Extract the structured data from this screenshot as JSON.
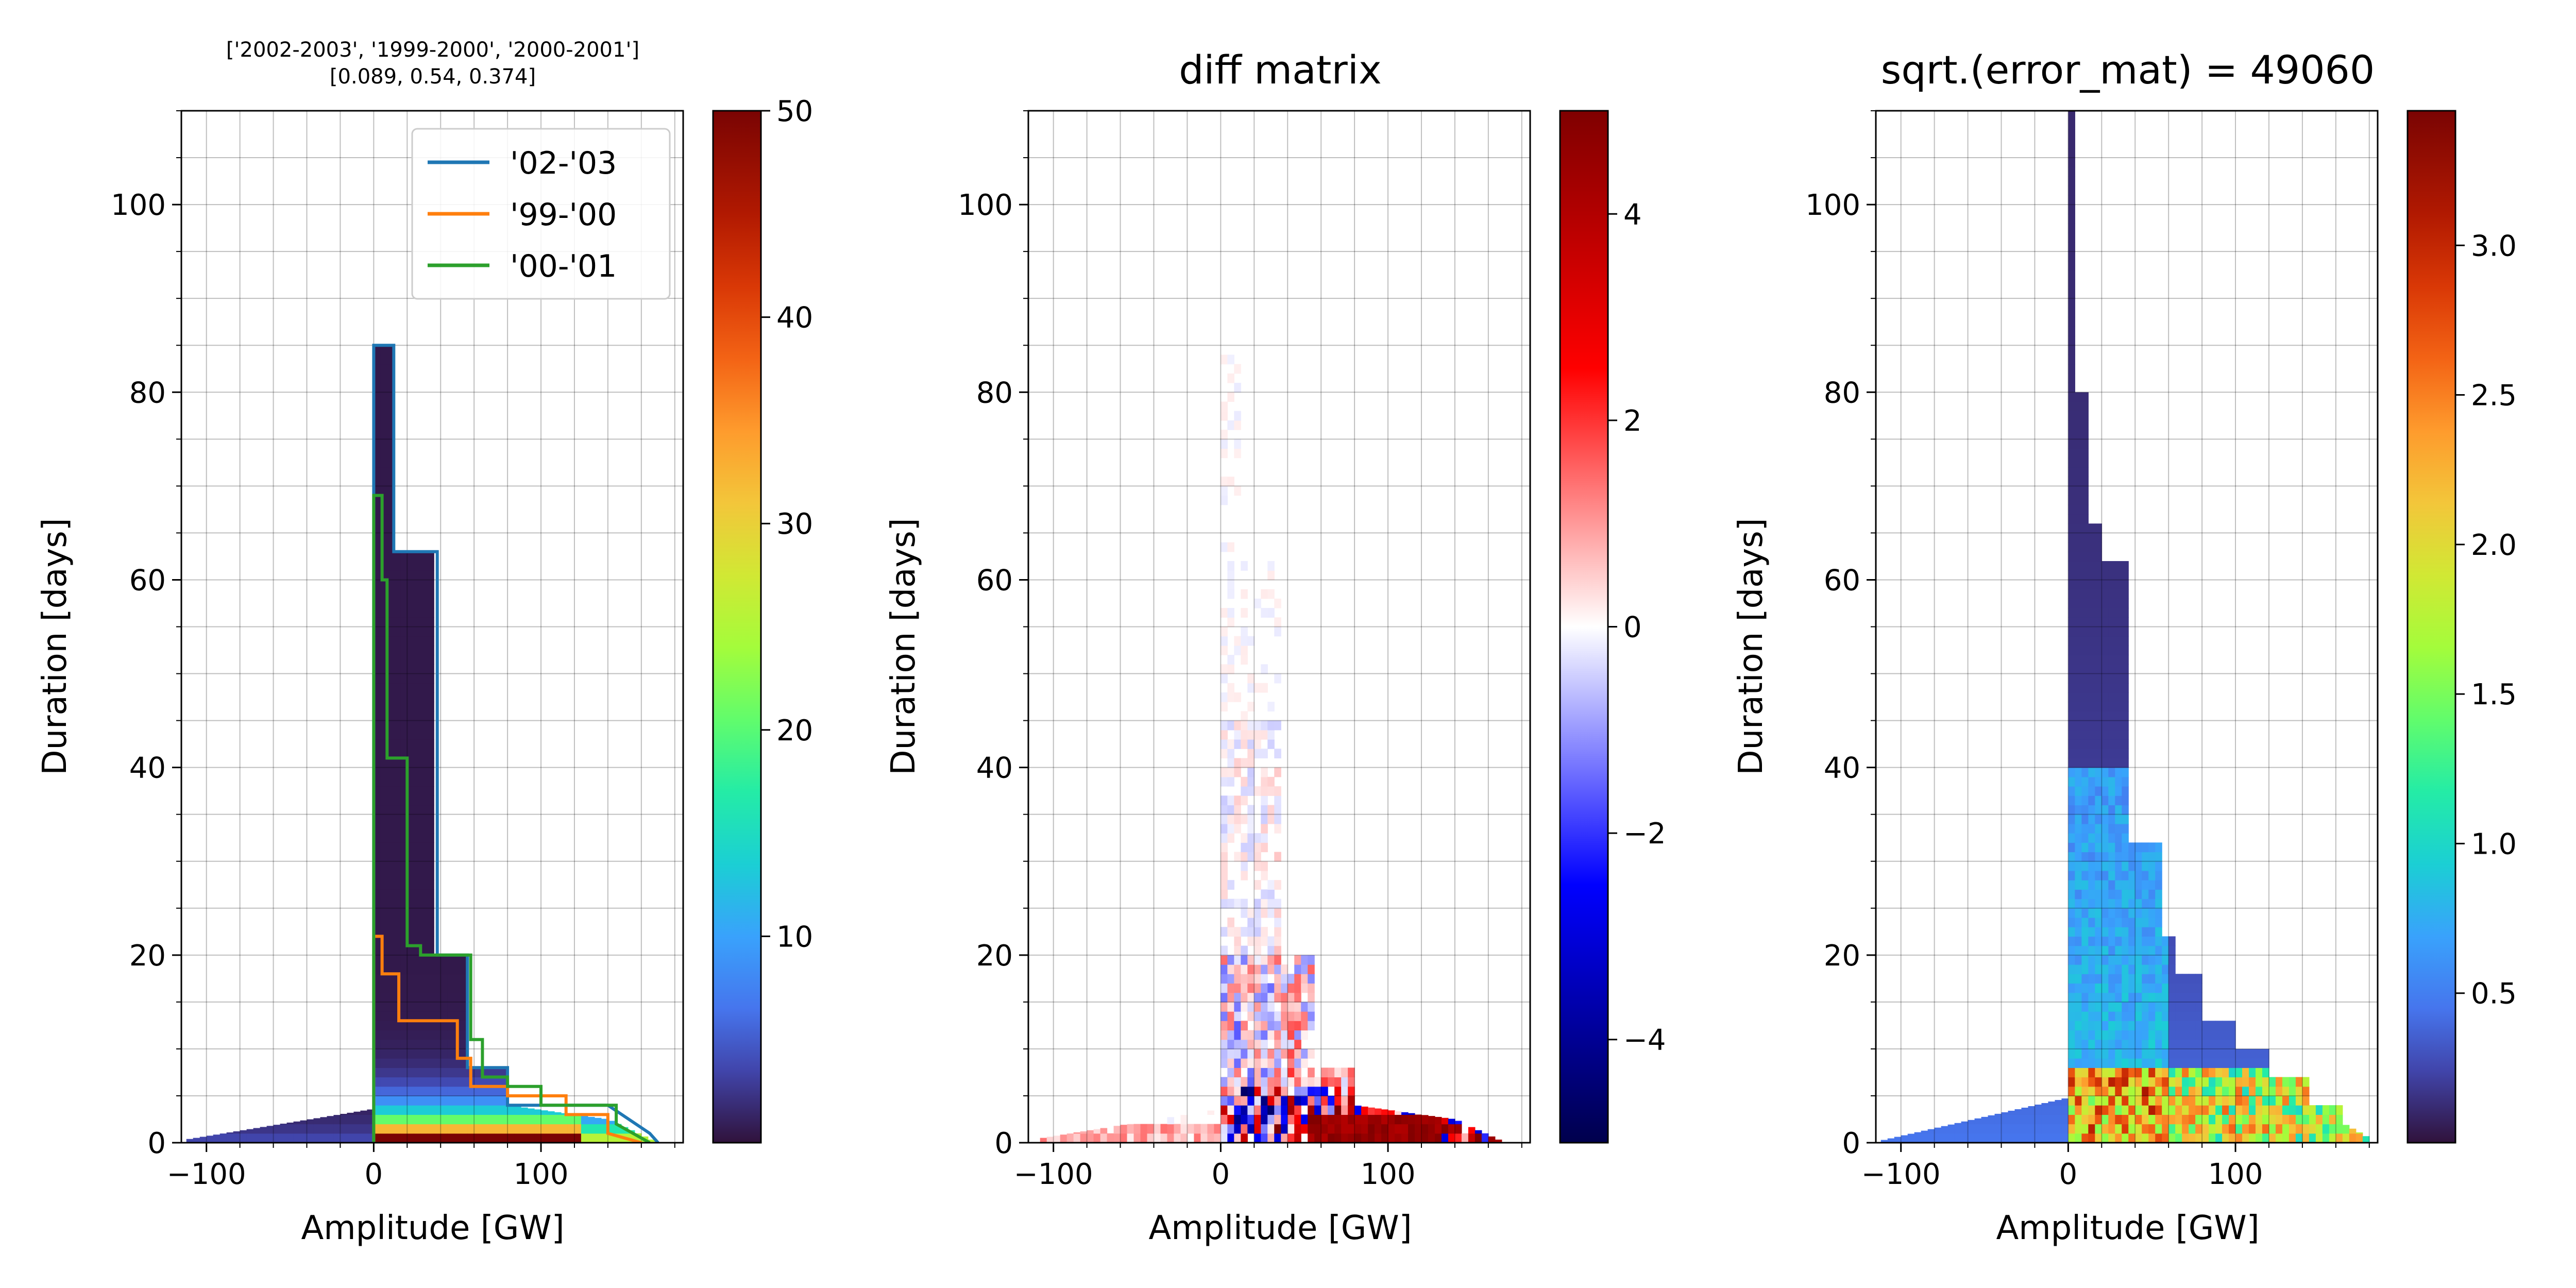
{
  "chart_data": [
    {
      "type": "heatmap",
      "title_lines": [
        "['2002-2003', '1999-2000', '2000-2001']",
        "[0.089, 0.54, 0.374]"
      ],
      "xlabel": "Amplitude [GW]",
      "ylabel": "Duration [days]",
      "xlim": [
        -115,
        185
      ],
      "ylim": [
        0,
        110
      ],
      "xticks": [
        -100,
        0,
        100
      ],
      "yticks": [
        0,
        20,
        40,
        60,
        80,
        100
      ],
      "grid": true,
      "colormap": "turbo",
      "colorbar": {
        "min": 0,
        "max": 50,
        "ticks": [
          10,
          20,
          30,
          40,
          50
        ]
      },
      "legend_position": "top-right",
      "series": [
        {
          "name": "'02-'03",
          "color": "#1f77b4",
          "x": [
            0,
            0,
            12,
            12,
            38,
            38,
            56,
            56,
            80,
            80,
            140,
            165,
            170
          ],
          "y": [
            0,
            85,
            85,
            63,
            63,
            20,
            20,
            8,
            8,
            4,
            4,
            1,
            0
          ]
        },
        {
          "name": "'99-'00",
          "color": "#ff7f0e",
          "x": [
            0,
            0,
            5,
            5,
            15,
            15,
            50,
            50,
            58,
            58,
            80,
            80,
            115,
            115,
            140,
            140,
            160
          ],
          "y": [
            0,
            22,
            22,
            18,
            18,
            13,
            13,
            9,
            9,
            6,
            6,
            5,
            5,
            3,
            3,
            1,
            0
          ]
        },
        {
          "name": "'00-'01",
          "color": "#2ca02c",
          "x": [
            0,
            0,
            5,
            5,
            8,
            8,
            20,
            20,
            28,
            28,
            58,
            58,
            65,
            65,
            80,
            80,
            100,
            100,
            145,
            145,
            165
          ],
          "y": [
            0,
            69,
            69,
            60,
            60,
            41,
            41,
            21,
            21,
            20,
            20,
            11,
            11,
            7,
            7,
            6,
            6,
            4,
            4,
            2,
            0
          ]
        }
      ]
    },
    {
      "type": "heatmap",
      "title": "diff matrix",
      "xlabel": "Amplitude [GW]",
      "ylabel": "Duration [days]",
      "xlim": [
        -115,
        185
      ],
      "ylim": [
        0,
        110
      ],
      "xticks": [
        -100,
        0,
        100
      ],
      "yticks": [
        0,
        20,
        40,
        60,
        80,
        100
      ],
      "grid": true,
      "colormap": "seismic",
      "colorbar": {
        "min": -5,
        "max": 5,
        "ticks": [
          -4,
          -2,
          0,
          2,
          4
        ],
        "tick_labels": [
          "−4",
          "−2",
          "0",
          "2",
          "4"
        ]
      }
    },
    {
      "type": "heatmap",
      "title": "sqrt.(error_mat) = 49060",
      "xlabel": "Amplitude [GW]",
      "ylabel": "Duration [days]",
      "xlim": [
        -115,
        185
      ],
      "ylim": [
        0,
        110
      ],
      "xticks": [
        -100,
        0,
        100
      ],
      "yticks": [
        0,
        20,
        40,
        60,
        80,
        100
      ],
      "grid": true,
      "colormap": "turbo",
      "colorbar": {
        "min": 0,
        "max": 3.45,
        "ticks": [
          0.5,
          1.0,
          1.5,
          2.0,
          2.5,
          3.0
        ],
        "tick_labels": [
          "0.5",
          "1.0",
          "1.5",
          "2.0",
          "2.5",
          "3.0"
        ]
      }
    }
  ]
}
